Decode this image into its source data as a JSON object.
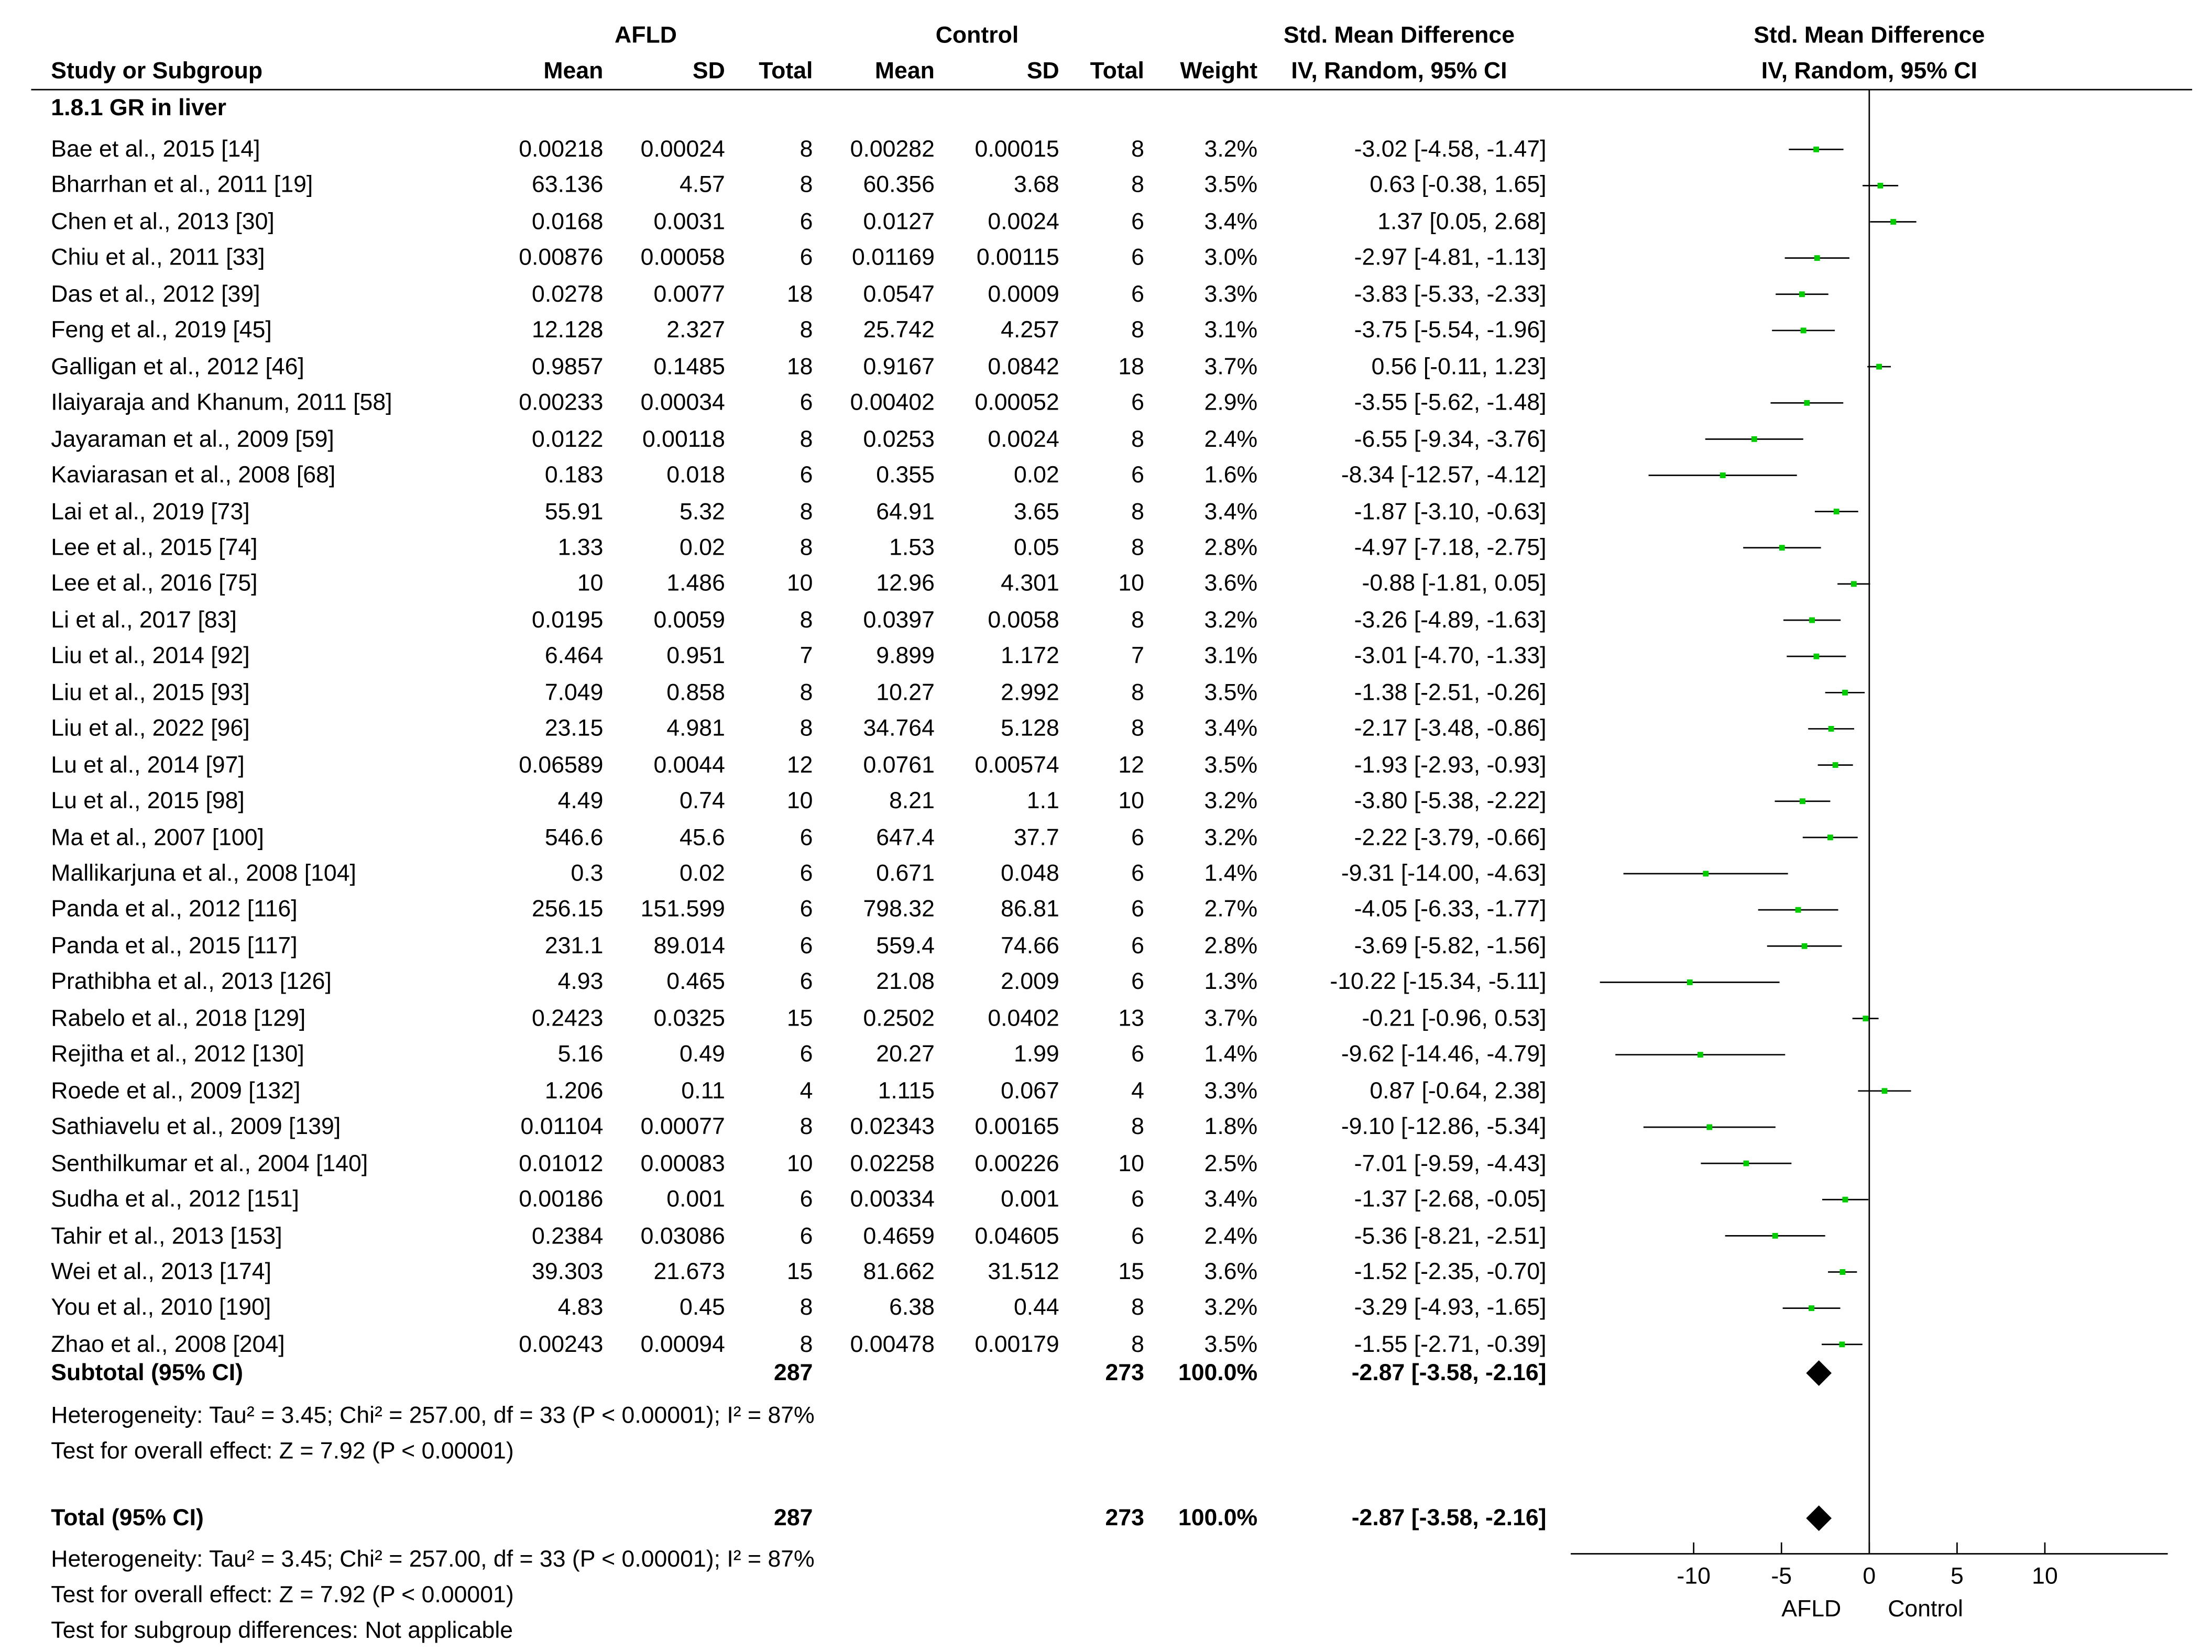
{
  "header": {
    "group_afld": "AFLD",
    "group_control": "Control",
    "smd_title": "Std. Mean Difference",
    "smd_title_plot": "Std. Mean Difference",
    "col_study": "Study or Subgroup",
    "col_mean1": "Mean",
    "col_sd1": "SD",
    "col_total1": "Total",
    "col_mean2": "Mean",
    "col_sd2": "SD",
    "col_total2": "Total",
    "col_weight": "Weight",
    "col_ci": "IV, Random, 95% CI",
    "col_ci_plot": "IV, Random, 95% CI"
  },
  "subgroup": {
    "title": "1.8.1 GR in liver",
    "subtotal": {
      "label": "Subtotal (95% CI)",
      "total1": "287",
      "total2": "273",
      "weight": "100.0%",
      "ci": "-2.87 [-3.58, -2.16]"
    },
    "heterogeneity": "Heterogeneity: Tau² = 3.45; Chi² = 257.00, df = 33 (P < 0.00001); I² = 87%",
    "overall": "Test for overall effect: Z = 7.92 (P < 0.00001)"
  },
  "total": {
    "label": "Total (95% CI)",
    "total1": "287",
    "total2": "273",
    "weight": "100.0%",
    "ci": "-2.87 [-3.58, -2.16]",
    "heterogeneity": "Heterogeneity: Tau² = 3.45; Chi² = 257.00, df = 33 (P < 0.00001); I² = 87%",
    "overall": "Test for overall effect: Z = 7.92 (P < 0.00001)",
    "subgroup_diff": "Test for subgroup differences: Not applicable"
  },
  "studies": [
    {
      "study": "Bae et al., 2015 [14]",
      "mean1": "0.00218",
      "sd1": "0.00024",
      "n1": "8",
      "mean2": "0.00282",
      "sd2": "0.00015",
      "n2": "8",
      "weight": "3.2%",
      "ci": "-3.02 [-4.58, -1.47]"
    },
    {
      "study": "Bharrhan et al., 2011 [19]",
      "mean1": "63.136",
      "sd1": "4.57",
      "n1": "8",
      "mean2": "60.356",
      "sd2": "3.68",
      "n2": "8",
      "weight": "3.5%",
      "ci": "0.63 [-0.38, 1.65]"
    },
    {
      "study": "Chen et al., 2013 [30]",
      "mean1": "0.0168",
      "sd1": "0.0031",
      "n1": "6",
      "mean2": "0.0127",
      "sd2": "0.0024",
      "n2": "6",
      "weight": "3.4%",
      "ci": "1.37 [0.05, 2.68]"
    },
    {
      "study": "Chiu et al., 2011 [33]",
      "mean1": "0.00876",
      "sd1": "0.00058",
      "n1": "6",
      "mean2": "0.01169",
      "sd2": "0.00115",
      "n2": "6",
      "weight": "3.0%",
      "ci": "-2.97 [-4.81, -1.13]"
    },
    {
      "study": "Das et al., 2012 [39]",
      "mean1": "0.0278",
      "sd1": "0.0077",
      "n1": "18",
      "mean2": "0.0547",
      "sd2": "0.0009",
      "n2": "6",
      "weight": "3.3%",
      "ci": "-3.83 [-5.33, -2.33]"
    },
    {
      "study": "Feng et al., 2019 [45]",
      "mean1": "12.128",
      "sd1": "2.327",
      "n1": "8",
      "mean2": "25.742",
      "sd2": "4.257",
      "n2": "8",
      "weight": "3.1%",
      "ci": "-3.75 [-5.54, -1.96]"
    },
    {
      "study": "Galligan et al., 2012 [46]",
      "mean1": "0.9857",
      "sd1": "0.1485",
      "n1": "18",
      "mean2": "0.9167",
      "sd2": "0.0842",
      "n2": "18",
      "weight": "3.7%",
      "ci": "0.56 [-0.11, 1.23]"
    },
    {
      "study": "Ilaiyaraja and Khanum, 2011 [58]",
      "mean1": "0.00233",
      "sd1": "0.00034",
      "n1": "6",
      "mean2": "0.00402",
      "sd2": "0.00052",
      "n2": "6",
      "weight": "2.9%",
      "ci": "-3.55 [-5.62, -1.48]"
    },
    {
      "study": "Jayaraman et al., 2009 [59]",
      "mean1": "0.0122",
      "sd1": "0.00118",
      "n1": "8",
      "mean2": "0.0253",
      "sd2": "0.0024",
      "n2": "8",
      "weight": "2.4%",
      "ci": "-6.55 [-9.34, -3.76]"
    },
    {
      "study": "Kaviarasan et al., 2008 [68]",
      "mean1": "0.183",
      "sd1": "0.018",
      "n1": "6",
      "mean2": "0.355",
      "sd2": "0.02",
      "n2": "6",
      "weight": "1.6%",
      "ci": "-8.34 [-12.57, -4.12]"
    },
    {
      "study": "Lai et al., 2019 [73]",
      "mean1": "55.91",
      "sd1": "5.32",
      "n1": "8",
      "mean2": "64.91",
      "sd2": "3.65",
      "n2": "8",
      "weight": "3.4%",
      "ci": "-1.87 [-3.10, -0.63]"
    },
    {
      "study": "Lee et al., 2015 [74]",
      "mean1": "1.33",
      "sd1": "0.02",
      "n1": "8",
      "mean2": "1.53",
      "sd2": "0.05",
      "n2": "8",
      "weight": "2.8%",
      "ci": "-4.97 [-7.18, -2.75]"
    },
    {
      "study": "Lee et al., 2016 [75]",
      "mean1": "10",
      "sd1": "1.486",
      "n1": "10",
      "mean2": "12.96",
      "sd2": "4.301",
      "n2": "10",
      "weight": "3.6%",
      "ci": "-0.88 [-1.81, 0.05]"
    },
    {
      "study": "Li et al., 2017 [83]",
      "mean1": "0.0195",
      "sd1": "0.0059",
      "n1": "8",
      "mean2": "0.0397",
      "sd2": "0.0058",
      "n2": "8",
      "weight": "3.2%",
      "ci": "-3.26 [-4.89, -1.63]"
    },
    {
      "study": "Liu et al., 2014 [92]",
      "mean1": "6.464",
      "sd1": "0.951",
      "n1": "7",
      "mean2": "9.899",
      "sd2": "1.172",
      "n2": "7",
      "weight": "3.1%",
      "ci": "-3.01 [-4.70, -1.33]"
    },
    {
      "study": "Liu et al., 2015 [93]",
      "mean1": "7.049",
      "sd1": "0.858",
      "n1": "8",
      "mean2": "10.27",
      "sd2": "2.992",
      "n2": "8",
      "weight": "3.5%",
      "ci": "-1.38 [-2.51, -0.26]"
    },
    {
      "study": "Liu et al., 2022 [96]",
      "mean1": "23.15",
      "sd1": "4.981",
      "n1": "8",
      "mean2": "34.764",
      "sd2": "5.128",
      "n2": "8",
      "weight": "3.4%",
      "ci": "-2.17 [-3.48, -0.86]"
    },
    {
      "study": "Lu et al., 2014 [97]",
      "mean1": "0.06589",
      "sd1": "0.0044",
      "n1": "12",
      "mean2": "0.0761",
      "sd2": "0.00574",
      "n2": "12",
      "weight": "3.5%",
      "ci": "-1.93 [-2.93, -0.93]"
    },
    {
      "study": "Lu et al., 2015 [98]",
      "mean1": "4.49",
      "sd1": "0.74",
      "n1": "10",
      "mean2": "8.21",
      "sd2": "1.1",
      "n2": "10",
      "weight": "3.2%",
      "ci": "-3.80 [-5.38, -2.22]"
    },
    {
      "study": "Ma et al., 2007 [100]",
      "mean1": "546.6",
      "sd1": "45.6",
      "n1": "6",
      "mean2": "647.4",
      "sd2": "37.7",
      "n2": "6",
      "weight": "3.2%",
      "ci": "-2.22 [-3.79, -0.66]"
    },
    {
      "study": "Mallikarjuna et al., 2008 [104]",
      "mean1": "0.3",
      "sd1": "0.02",
      "n1": "6",
      "mean2": "0.671",
      "sd2": "0.048",
      "n2": "6",
      "weight": "1.4%",
      "ci": "-9.31 [-14.00, -4.63]"
    },
    {
      "study": "Panda et al., 2012 [116]",
      "mean1": "256.15",
      "sd1": "151.599",
      "n1": "6",
      "mean2": "798.32",
      "sd2": "86.81",
      "n2": "6",
      "weight": "2.7%",
      "ci": "-4.05 [-6.33, -1.77]"
    },
    {
      "study": "Panda et al., 2015 [117]",
      "mean1": "231.1",
      "sd1": "89.014",
      "n1": "6",
      "mean2": "559.4",
      "sd2": "74.66",
      "n2": "6",
      "weight": "2.8%",
      "ci": "-3.69 [-5.82, -1.56]"
    },
    {
      "study": "Prathibha et al., 2013 [126]",
      "mean1": "4.93",
      "sd1": "0.465",
      "n1": "6",
      "mean2": "21.08",
      "sd2": "2.009",
      "n2": "6",
      "weight": "1.3%",
      "ci": "-10.22 [-15.34, -5.11]"
    },
    {
      "study": "Rabelo et al., 2018 [129]",
      "mean1": "0.2423",
      "sd1": "0.0325",
      "n1": "15",
      "mean2": "0.2502",
      "sd2": "0.0402",
      "n2": "13",
      "weight": "3.7%",
      "ci": "-0.21 [-0.96, 0.53]"
    },
    {
      "study": "Rejitha et al., 2012 [130]",
      "mean1": "5.16",
      "sd1": "0.49",
      "n1": "6",
      "mean2": "20.27",
      "sd2": "1.99",
      "n2": "6",
      "weight": "1.4%",
      "ci": "-9.62 [-14.46, -4.79]"
    },
    {
      "study": "Roede et al., 2009 [132]",
      "mean1": "1.206",
      "sd1": "0.11",
      "n1": "4",
      "mean2": "1.115",
      "sd2": "0.067",
      "n2": "4",
      "weight": "3.3%",
      "ci": "0.87 [-0.64, 2.38]"
    },
    {
      "study": "Sathiavelu et al., 2009 [139]",
      "mean1": "0.01104",
      "sd1": "0.00077",
      "n1": "8",
      "mean2": "0.02343",
      "sd2": "0.00165",
      "n2": "8",
      "weight": "1.8%",
      "ci": "-9.10 [-12.86, -5.34]"
    },
    {
      "study": "Senthilkumar et al., 2004 [140]",
      "mean1": "0.01012",
      "sd1": "0.00083",
      "n1": "10",
      "mean2": "0.02258",
      "sd2": "0.00226",
      "n2": "10",
      "weight": "2.5%",
      "ci": "-7.01 [-9.59, -4.43]"
    },
    {
      "study": "Sudha et al., 2012 [151]",
      "mean1": "0.00186",
      "sd1": "0.001",
      "n1": "6",
      "mean2": "0.00334",
      "sd2": "0.001",
      "n2": "6",
      "weight": "3.4%",
      "ci": "-1.37 [-2.68, -0.05]"
    },
    {
      "study": "Tahir et al., 2013 [153]",
      "mean1": "0.2384",
      "sd1": "0.03086",
      "n1": "6",
      "mean2": "0.4659",
      "sd2": "0.04605",
      "n2": "6",
      "weight": "2.4%",
      "ci": "-5.36 [-8.21, -2.51]"
    },
    {
      "study": "Wei et al., 2013 [174]",
      "mean1": "39.303",
      "sd1": "21.673",
      "n1": "15",
      "mean2": "81.662",
      "sd2": "31.512",
      "n2": "15",
      "weight": "3.6%",
      "ci": "-1.52 [-2.35, -0.70]"
    },
    {
      "study": "You et al., 2010 [190]",
      "mean1": "4.83",
      "sd1": "0.45",
      "n1": "8",
      "mean2": "6.38",
      "sd2": "0.44",
      "n2": "8",
      "weight": "3.2%",
      "ci": "-3.29 [-4.93, -1.65]"
    },
    {
      "study": "Zhao et al., 2008 [204]",
      "mean1": "0.00243",
      "sd1": "0.00094",
      "n1": "8",
      "mean2": "0.00478",
      "sd2": "0.00179",
      "n2": "8",
      "weight": "3.5%",
      "ci": "-1.55 [-2.71, -0.39]"
    }
  ],
  "chart_data": {
    "type": "forest",
    "title": "Std. Mean Difference",
    "subtitle": "IV, Random, 95% CI",
    "xlim": [
      -17,
      17
    ],
    "xticks": [
      -10,
      -5,
      0,
      5,
      10
    ],
    "xtick_labels": [
      "-10",
      "-5",
      "0",
      "5",
      "10"
    ],
    "favours_left": "AFLD",
    "favours_right": "Control",
    "point_color": "#00cc00",
    "estimates": [
      {
        "est": -3.02,
        "lo": -4.58,
        "hi": -1.47
      },
      {
        "est": 0.63,
        "lo": -0.38,
        "hi": 1.65
      },
      {
        "est": 1.37,
        "lo": 0.05,
        "hi": 2.68
      },
      {
        "est": -2.97,
        "lo": -4.81,
        "hi": -1.13
      },
      {
        "est": -3.83,
        "lo": -5.33,
        "hi": -2.33
      },
      {
        "est": -3.75,
        "lo": -5.54,
        "hi": -1.96
      },
      {
        "est": 0.56,
        "lo": -0.11,
        "hi": 1.23
      },
      {
        "est": -3.55,
        "lo": -5.62,
        "hi": -1.48
      },
      {
        "est": -6.55,
        "lo": -9.34,
        "hi": -3.76
      },
      {
        "est": -8.34,
        "lo": -12.57,
        "hi": -4.12
      },
      {
        "est": -1.87,
        "lo": -3.1,
        "hi": -0.63
      },
      {
        "est": -4.97,
        "lo": -7.18,
        "hi": -2.75
      },
      {
        "est": -0.88,
        "lo": -1.81,
        "hi": 0.05
      },
      {
        "est": -3.26,
        "lo": -4.89,
        "hi": -1.63
      },
      {
        "est": -3.01,
        "lo": -4.7,
        "hi": -1.33
      },
      {
        "est": -1.38,
        "lo": -2.51,
        "hi": -0.26
      },
      {
        "est": -2.17,
        "lo": -3.48,
        "hi": -0.86
      },
      {
        "est": -1.93,
        "lo": -2.93,
        "hi": -0.93
      },
      {
        "est": -3.8,
        "lo": -5.38,
        "hi": -2.22
      },
      {
        "est": -2.22,
        "lo": -3.79,
        "hi": -0.66
      },
      {
        "est": -9.31,
        "lo": -14.0,
        "hi": -4.63
      },
      {
        "est": -4.05,
        "lo": -6.33,
        "hi": -1.77
      },
      {
        "est": -3.69,
        "lo": -5.82,
        "hi": -1.56
      },
      {
        "est": -10.22,
        "lo": -15.34,
        "hi": -5.11
      },
      {
        "est": -0.21,
        "lo": -0.96,
        "hi": 0.53
      },
      {
        "est": -9.62,
        "lo": -14.46,
        "hi": -4.79
      },
      {
        "est": 0.87,
        "lo": -0.64,
        "hi": 2.38
      },
      {
        "est": -9.1,
        "lo": -12.86,
        "hi": -5.34
      },
      {
        "est": -7.01,
        "lo": -9.59,
        "hi": -4.43
      },
      {
        "est": -1.37,
        "lo": -2.68,
        "hi": -0.05
      },
      {
        "est": -5.36,
        "lo": -8.21,
        "hi": -2.51
      },
      {
        "est": -1.52,
        "lo": -2.35,
        "hi": -0.7
      },
      {
        "est": -3.29,
        "lo": -4.93,
        "hi": -1.65
      },
      {
        "est": -1.55,
        "lo": -2.71,
        "hi": -0.39
      }
    ],
    "subtotal": {
      "est": -2.87,
      "lo": -3.58,
      "hi": -2.16
    },
    "total": {
      "est": -2.87,
      "lo": -3.58,
      "hi": -2.16
    }
  }
}
